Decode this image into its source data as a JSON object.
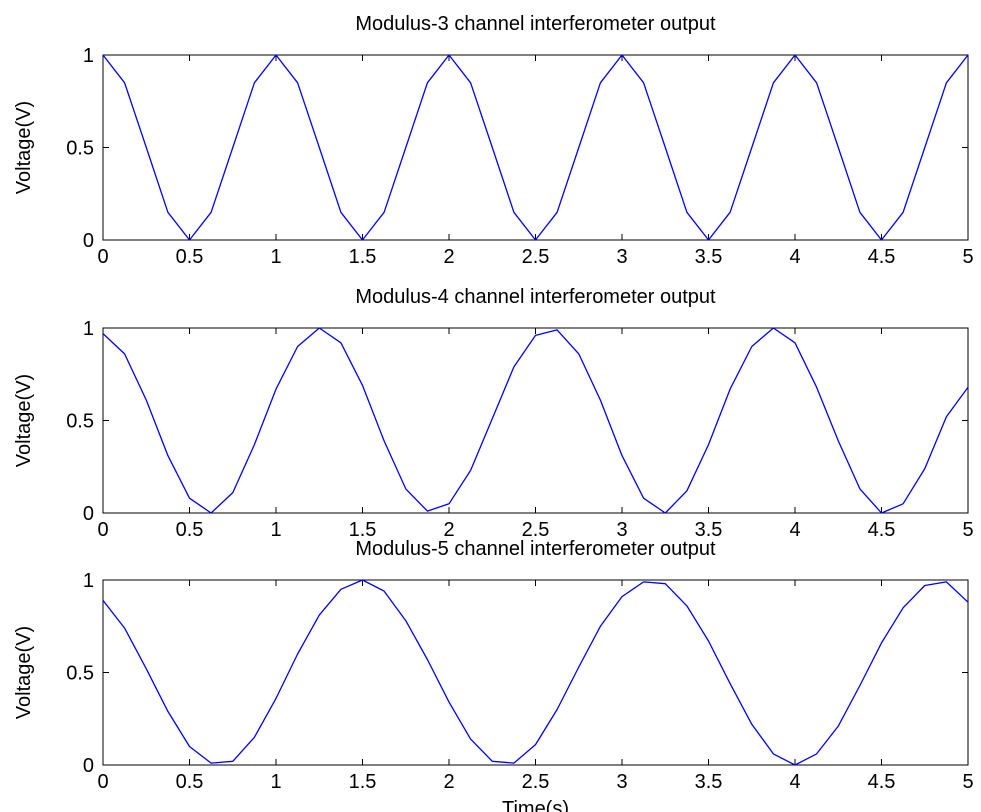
{
  "chart_data": [
    {
      "type": "line",
      "title": "Modulus-3 channel interferometer output",
      "xlabel": "",
      "ylabel": "Voltage(V)",
      "xlim": [
        0,
        5
      ],
      "ylim": [
        0,
        1
      ],
      "xticks": [
        "0",
        "0.5",
        "1",
        "1.5",
        "2",
        "2.5",
        "3",
        "3.5",
        "4",
        "4.5",
        "5"
      ],
      "yticks": [
        "0",
        "0.5",
        "1"
      ],
      "grid": false,
      "line_color": "#0000ff",
      "series": [
        {
          "x": [
            0,
            0.125,
            0.25,
            0.375,
            0.5,
            0.625,
            0.75,
            0.875,
            1,
            1.125,
            1.25,
            1.375,
            1.5,
            1.625,
            1.75,
            1.875,
            2,
            2.125,
            2.25,
            2.375,
            2.5,
            2.625,
            2.75,
            2.875,
            3,
            3.125,
            3.25,
            3.375,
            3.5,
            3.625,
            3.75,
            3.875,
            4,
            4.125,
            4.25,
            4.375,
            4.5,
            4.625,
            4.75,
            4.875,
            5
          ],
          "y": [
            1,
            0.85,
            0.5,
            0.15,
            0,
            0.15,
            0.5,
            0.85,
            1,
            0.85,
            0.5,
            0.15,
            0,
            0.15,
            0.5,
            0.85,
            1,
            0.85,
            0.5,
            0.15,
            0,
            0.15,
            0.5,
            0.85,
            1,
            0.85,
            0.5,
            0.15,
            0,
            0.15,
            0.5,
            0.85,
            1,
            0.85,
            0.5,
            0.15,
            0,
            0.15,
            0.5,
            0.85,
            1
          ]
        }
      ]
    },
    {
      "type": "line",
      "title": "Modulus-4 channel interferometer output",
      "xlabel": "",
      "ylabel": "Voltage(V)",
      "xlim": [
        0,
        5
      ],
      "ylim": [
        0,
        1
      ],
      "xticks": [
        "0",
        "0.5",
        "1",
        "1.5",
        "2",
        "2.5",
        "3",
        "3.5",
        "4",
        "4.5",
        "5"
      ],
      "yticks": [
        "0",
        "0.5",
        "1"
      ],
      "grid": false,
      "line_color": "#0000ff",
      "series": [
        {
          "x": [
            0,
            0.125,
            0.25,
            0.375,
            0.5,
            0.625,
            0.75,
            0.875,
            1,
            1.125,
            1.25,
            1.375,
            1.5,
            1.625,
            1.75,
            1.875,
            2,
            2.125,
            2.25,
            2.375,
            2.5,
            2.625,
            2.75,
            2.875,
            3,
            3.125,
            3.25,
            3.375,
            3.5,
            3.625,
            3.75,
            3.875,
            4,
            4.125,
            4.25,
            4.375,
            4.5,
            4.625,
            4.75,
            4.875,
            5
          ],
          "y": [
            0.97,
            0.86,
            0.61,
            0.31,
            0.08,
            0,
            0.11,
            0.37,
            0.67,
            0.9,
            1,
            0.92,
            0.69,
            0.39,
            0.13,
            0.01,
            0.05,
            0.23,
            0.51,
            0.79,
            0.96,
            0.99,
            0.86,
            0.61,
            0.31,
            0.08,
            0,
            0.12,
            0.37,
            0.67,
            0.9,
            1,
            0.92,
            0.68,
            0.39,
            0.13,
            0,
            0.05,
            0.24,
            0.52,
            0.68
          ]
        }
      ]
    },
    {
      "type": "line",
      "title": "Modulus-5 channel interferometer output",
      "xlabel": "Time(s)",
      "ylabel": "Voltage(V)",
      "xlim": [
        0,
        5
      ],
      "ylim": [
        0,
        1
      ],
      "xticks": [
        "0",
        "0.5",
        "1",
        "1.5",
        "2",
        "2.5",
        "3",
        "3.5",
        "4",
        "4.5",
        "5"
      ],
      "yticks": [
        "0",
        "0.5",
        "1"
      ],
      "grid": false,
      "line_color": "#0000ff",
      "series": [
        {
          "x": [
            0,
            0.125,
            0.25,
            0.375,
            0.5,
            0.625,
            0.75,
            0.875,
            1,
            1.125,
            1.25,
            1.375,
            1.5,
            1.625,
            1.75,
            1.875,
            2,
            2.125,
            2.25,
            2.375,
            2.5,
            2.625,
            2.75,
            2.875,
            3,
            3.125,
            3.25,
            3.375,
            3.5,
            3.625,
            3.75,
            3.875,
            4,
            4.125,
            4.25,
            4.375,
            4.5,
            4.625,
            4.75,
            4.875,
            5
          ],
          "y": [
            0.89,
            0.74,
            0.52,
            0.29,
            0.1,
            0.01,
            0.02,
            0.15,
            0.36,
            0.6,
            0.81,
            0.95,
            1,
            0.94,
            0.78,
            0.57,
            0.34,
            0.14,
            0.02,
            0.01,
            0.11,
            0.3,
            0.53,
            0.75,
            0.91,
            0.99,
            0.98,
            0.86,
            0.67,
            0.44,
            0.22,
            0.06,
            0,
            0.06,
            0.21,
            0.43,
            0.66,
            0.85,
            0.97,
            0.99,
            0.88
          ]
        }
      ]
    }
  ]
}
